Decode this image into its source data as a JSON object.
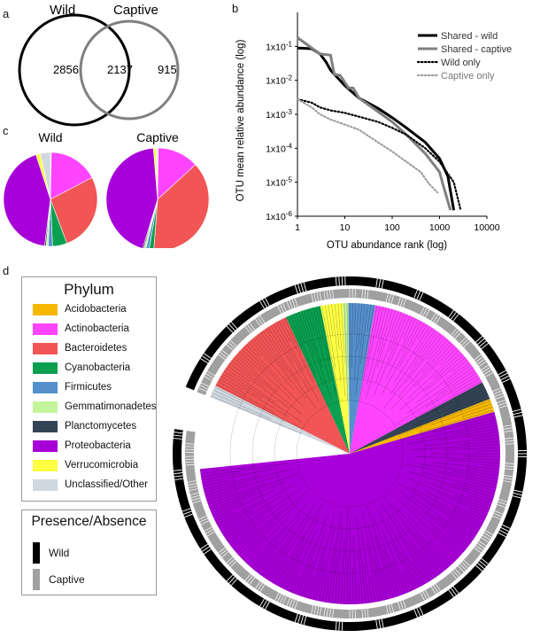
{
  "panels": {
    "a": "a",
    "b": "b",
    "c": "c",
    "d": "d"
  },
  "venn": {
    "left_label": "Wild",
    "right_label": "Captive",
    "left_only": "2856",
    "shared": "2137",
    "right_only": "915",
    "colors": {
      "wild": "#000000",
      "captive": "#808080"
    }
  },
  "chart_data": [
    {
      "type": "line",
      "xlabel": "OTU abundance rank (log)",
      "ylabel": "OTU mean relative abundance (log)",
      "xscale": "log",
      "yscale": "log",
      "xlim": [
        1,
        10000
      ],
      "ylim": [
        1e-06,
        1
      ],
      "xticks": [
        "1",
        "10",
        "100",
        "1000",
        "10000"
      ],
      "yticks": [
        "1x10-1",
        "1x10-2",
        "1x10-3",
        "1x10-4",
        "1x10-5",
        "1x10-6"
      ],
      "legend_position": "top-right",
      "series": [
        {
          "name": "Shared - wild",
          "color": "#000000",
          "style": "solid",
          "points": [
            [
              1,
              0.09
            ],
            [
              2,
              0.085
            ],
            [
              3,
              0.06
            ],
            [
              4,
              0.035
            ],
            [
              5,
              0.02
            ],
            [
              7,
              0.012
            ],
            [
              10,
              0.007
            ],
            [
              20,
              0.003
            ],
            [
              50,
              0.0015
            ],
            [
              100,
              0.0008
            ],
            [
              200,
              0.0004
            ],
            [
              500,
              0.00015
            ],
            [
              1000,
              5e-05
            ],
            [
              1500,
              1.5e-05
            ],
            [
              2000,
              1.5e-06
            ]
          ]
        },
        {
          "name": "Shared - captive",
          "color": "#808080",
          "style": "solid",
          "points": [
            [
              1,
              0.18
            ],
            [
              2,
              0.09
            ],
            [
              3,
              0.06
            ],
            [
              5,
              0.055
            ],
            [
              6,
              0.015
            ],
            [
              8,
              0.014
            ],
            [
              12,
              0.006
            ],
            [
              15,
              0.006
            ],
            [
              20,
              0.003
            ],
            [
              50,
              0.0012
            ],
            [
              100,
              0.0006
            ],
            [
              200,
              0.00025
            ],
            [
              500,
              7e-05
            ],
            [
              1000,
              2e-05
            ],
            [
              1200,
              8e-06
            ],
            [
              1700,
              1.5e-06
            ]
          ]
        },
        {
          "name": "Wild only",
          "color": "#000000",
          "style": "dotted",
          "points": [
            [
              1,
              0.0028
            ],
            [
              2,
              0.0022
            ],
            [
              3,
              0.0016
            ],
            [
              5,
              0.0013
            ],
            [
              10,
              0.0011
            ],
            [
              20,
              0.00085
            ],
            [
              50,
              0.0006
            ],
            [
              100,
              0.0004
            ],
            [
              200,
              0.00025
            ],
            [
              500,
              0.0001
            ],
            [
              1000,
              4e-05
            ],
            [
              2000,
              1e-05
            ],
            [
              2800,
              1.5e-06
            ]
          ]
        },
        {
          "name": "Captive only",
          "color": "#a0a0a0",
          "style": "dotted",
          "points": [
            [
              1,
              0.0028
            ],
            [
              2,
              0.0016
            ],
            [
              3,
              0.001
            ],
            [
              5,
              0.0007
            ],
            [
              10,
              0.0005
            ],
            [
              20,
              0.00035
            ],
            [
              50,
              0.00015
            ],
            [
              100,
              8e-05
            ],
            [
              200,
              4e-05
            ],
            [
              400,
              2e-05
            ],
            [
              600,
              9e-06
            ],
            [
              900,
              5e-06
            ]
          ]
        }
      ]
    },
    {
      "type": "pie",
      "title": "Wild",
      "labels": [
        "Acidobacteria",
        "Actinobacteria",
        "Bacteroidetes",
        "Cyanobacteria",
        "Firmicutes",
        "Gemmatimonadetes",
        "Planctomycetes",
        "Proteobacteria",
        "Verrucomicrobia",
        "Unclassified/Other"
      ],
      "values": [
        0.3,
        17,
        27,
        5,
        1.5,
        0.7,
        0.5,
        43,
        1.5,
        3.5
      ]
    },
    {
      "type": "pie",
      "title": "Captive",
      "labels": [
        "Acidobacteria",
        "Actinobacteria",
        "Bacteroidetes",
        "Cyanobacteria",
        "Firmicutes",
        "Gemmatimonadetes",
        "Planctomycetes",
        "Proteobacteria",
        "Verrucomicrobia",
        "Unclassified/Other"
      ],
      "values": [
        0.2,
        13,
        38,
        1.5,
        1,
        0.6,
        0.4,
        44,
        0.8,
        0.5
      ]
    }
  ],
  "phylum_legend": {
    "title": "Phylum",
    "items": [
      {
        "label": "Acidobacteria",
        "color": "#f5b800"
      },
      {
        "label": "Actinobacteria",
        "color": "#ff44ff"
      },
      {
        "label": "Bacteroidetes",
        "color": "#f25555"
      },
      {
        "label": "Cyanobacteria",
        "color": "#0aa050"
      },
      {
        "label": "Firmicutes",
        "color": "#5590cc"
      },
      {
        "label": "Gemmatimonadetes",
        "color": "#c4f59a"
      },
      {
        "label": "Planctomycetes",
        "color": "#334455"
      },
      {
        "label": "Proteobacteria",
        "color": "#a800d8"
      },
      {
        "label": "Verrucomicrobia",
        "color": "#ffff44"
      },
      {
        "label": "Unclassified/Other",
        "color": "#d0d8e0"
      }
    ]
  },
  "presence_legend": {
    "title": "Presence/Absence",
    "items": [
      {
        "label": "Wild",
        "color": "#000000"
      },
      {
        "label": "Captive",
        "color": "#a0a0a0"
      }
    ]
  },
  "tree_segments": [
    {
      "phylum": "Proteobacteria",
      "percent": 55
    },
    {
      "phylum": "Acidobacteria",
      "percent": 1.5
    },
    {
      "phylum": "Planctomycetes",
      "percent": 2
    },
    {
      "phylum": "Actinobacteria",
      "percent": 15
    },
    {
      "phylum": "Firmicutes",
      "percent": 3
    },
    {
      "phylum": "Gemmatimonadetes",
      "percent": 0.6
    },
    {
      "phylum": "Verrucomicrobia",
      "percent": 2.5
    },
    {
      "phylum": "Cyanobacteria",
      "percent": 4
    },
    {
      "phylum": "Bacteroidetes",
      "percent": 11
    },
    {
      "phylum": "Unclassified/Other",
      "percent": 1.4
    }
  ]
}
